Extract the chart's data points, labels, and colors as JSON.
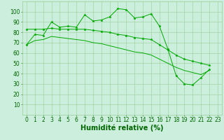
{
  "x_values": [
    0,
    1,
    2,
    3,
    4,
    5,
    6,
    7,
    8,
    9,
    10,
    11,
    12,
    13,
    14,
    15,
    16,
    17,
    18,
    19,
    20,
    21,
    22,
    23
  ],
  "upper": [
    68,
    78,
    77,
    90,
    85,
    86,
    85,
    97,
    91,
    92,
    95,
    103,
    102,
    94,
    95,
    98,
    86,
    64,
    38,
    30,
    29,
    36,
    44,
    null
  ],
  "middle": [
    83,
    83,
    83,
    84,
    83,
    83,
    83,
    83,
    82,
    81,
    80,
    78,
    77,
    75,
    74,
    73,
    68,
    63,
    58,
    54,
    52,
    50,
    48,
    null
  ],
  "lower": [
    68,
    72,
    73,
    76,
    75,
    74,
    73,
    72,
    70,
    69,
    67,
    65,
    63,
    61,
    60,
    58,
    54,
    50,
    46,
    43,
    41,
    39,
    43,
    null
  ],
  "line_color": "#00aa00",
  "bg_color": "#cceedd",
  "grid_color": "#99cc99",
  "xlabel": "Humidité relative (%)",
  "xlabel_color": "#006600",
  "xlabel_fontsize": 7,
  "tick_color": "#006600",
  "tick_fontsize": 5.5,
  "ylim": [
    0,
    110
  ],
  "xlim": [
    -0.5,
    23.5
  ],
  "yticks": [
    10,
    20,
    30,
    40,
    50,
    60,
    70,
    80,
    90,
    100
  ],
  "xticks": [
    0,
    1,
    2,
    3,
    4,
    5,
    6,
    7,
    8,
    9,
    10,
    11,
    12,
    13,
    14,
    15,
    16,
    17,
    18,
    19,
    20,
    21,
    22,
    23
  ]
}
